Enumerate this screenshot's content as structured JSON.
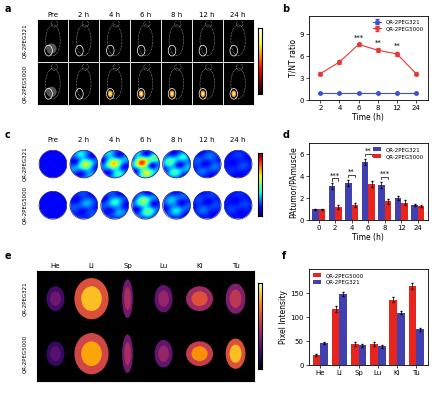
{
  "panel_labels": [
    "a",
    "b",
    "c",
    "d",
    "e",
    "f"
  ],
  "panel_a": {
    "rows": [
      "QR-2PEG321",
      "QR-2PEG5000"
    ],
    "columns": [
      "Pre",
      "2 h",
      "4 h",
      "6 h",
      "8 h",
      "12 h",
      "24 h"
    ]
  },
  "panel_c": {
    "rows": [
      "QR-2PEG321",
      "QR-2PEG5000"
    ],
    "columns": [
      "Pre",
      "2 h",
      "4 h",
      "6 h",
      "8 h",
      "12 h",
      "24 h"
    ]
  },
  "panel_e": {
    "rows": [
      "QR-2PEG321",
      "QR-2PEG5000"
    ],
    "columns": [
      "He",
      "Li",
      "Sp",
      "Lu",
      "Ki",
      "Tu"
    ]
  },
  "chart_data": [
    {
      "type": "line",
      "xlabel": "Time (h)",
      "ylabel": "T/NT ratio",
      "categories": [
        "2",
        "4",
        "6",
        "8",
        "12",
        "24"
      ],
      "series": [
        {
          "name": "QR-2PEG321",
          "color": "#3b4fd8",
          "marker": "o",
          "line_style": "solid",
          "values": [
            1.0,
            1.0,
            1.0,
            1.0,
            1.0,
            1.0
          ],
          "errors": [
            0.05,
            0.05,
            0.05,
            0.05,
            0.05,
            0.05
          ]
        },
        {
          "name": "QR-2PEG5000",
          "color": "#e53935",
          "marker": "o",
          "line_style": "solid",
          "values": [
            3.6,
            5.2,
            7.6,
            6.8,
            6.3,
            3.6
          ],
          "errors": [
            0.2,
            0.25,
            0.2,
            0.3,
            0.3,
            0.2
          ]
        }
      ],
      "ylim": [
        0,
        11.5
      ],
      "yticks": [
        0,
        3,
        6,
        9
      ],
      "legend": "upper right",
      "annotations": [
        {
          "category": "6",
          "text": "***"
        },
        {
          "category": "8",
          "text": "**"
        },
        {
          "category": "12",
          "text": "**"
        }
      ]
    },
    {
      "type": "bar",
      "xlabel": "Time (h)",
      "ylabel": "PAtumor/PAmuscle",
      "categories": [
        "0",
        "2",
        "4",
        "6",
        "8",
        "12",
        "24"
      ],
      "series": [
        {
          "name": "QR-2PEG321",
          "color": "#4040b0",
          "values": [
            1.0,
            3.1,
            3.4,
            5.3,
            3.2,
            2.0,
            1.4
          ],
          "errors": [
            0.05,
            0.3,
            0.3,
            0.3,
            0.3,
            0.2,
            0.1
          ]
        },
        {
          "name": "QR-2PEG5000",
          "color": "#e8251c",
          "values": [
            1.0,
            1.2,
            1.4,
            3.3,
            1.7,
            1.6,
            1.3
          ],
          "errors": [
            0.05,
            0.15,
            0.2,
            0.3,
            0.2,
            0.2,
            0.1
          ]
        }
      ],
      "ylim": [
        0,
        7
      ],
      "yticks": [
        0,
        2,
        4,
        6
      ],
      "legend": "upper right",
      "annotations": [
        {
          "category": "2",
          "text": "***"
        },
        {
          "category": "4",
          "text": "**"
        },
        {
          "category": "6",
          "text": "**"
        },
        {
          "category": "8",
          "text": "***"
        }
      ]
    },
    {
      "type": "bar",
      "ylabel": "Pixel Intensity",
      "categories": [
        "He",
        "Li",
        "Sp",
        "Lu",
        "Ki",
        "Tu"
      ],
      "series": [
        {
          "name": "QR-2PEG5000",
          "color": "#e8251c",
          "values": [
            22,
            118,
            45,
            45,
            137,
            165
          ],
          "errors": [
            2,
            6,
            4,
            4,
            5,
            6
          ]
        },
        {
          "name": "QR-2PEG321",
          "color": "#4040b0",
          "values": [
            46,
            148,
            42,
            40,
            110,
            75
          ],
          "errors": [
            2,
            4,
            3,
            3,
            4,
            3
          ]
        }
      ],
      "ylim": [
        0,
        200
      ],
      "yticks": [
        0,
        50,
        100,
        150
      ],
      "legend": "upper left"
    }
  ]
}
